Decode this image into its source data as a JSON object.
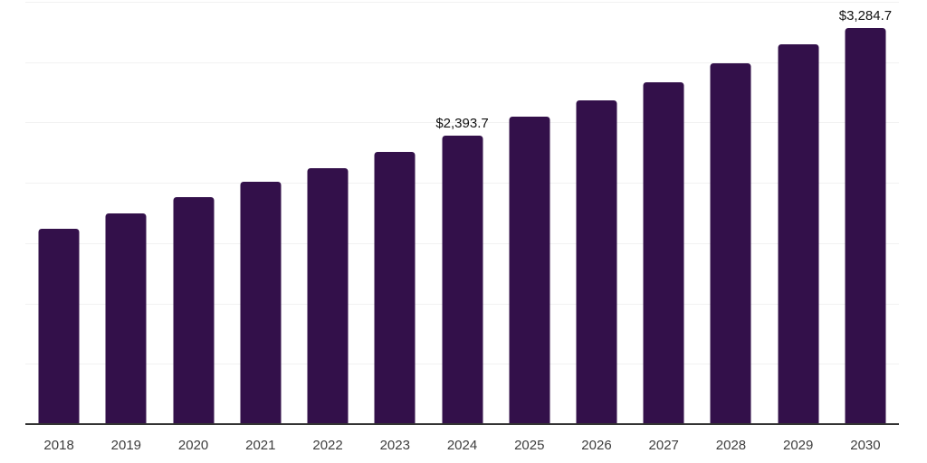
{
  "chart_data": {
    "type": "bar",
    "title": "",
    "xlabel": "",
    "ylabel": "",
    "categories": [
      "2018",
      "2019",
      "2020",
      "2021",
      "2022",
      "2023",
      "2024",
      "2025",
      "2026",
      "2027",
      "2028",
      "2029",
      "2030"
    ],
    "values": [
      1620,
      1750,
      1880,
      2005,
      2120,
      2255,
      2393.7,
      2545,
      2680,
      2835,
      2990,
      3150,
      3284.7
    ],
    "data_labels": [
      "",
      "",
      "",
      "",
      "",
      "",
      "$2,393.7",
      "",
      "",
      "",
      "",
      "",
      "$3,284.7"
    ],
    "value_prefix": "$",
    "ylim": [
      0,
      3500
    ],
    "gridline_step": 500,
    "grid": "horizontal-only",
    "legend": "none",
    "y_axis_ticks_visible": false,
    "colors": {
      "bar": "#33104A",
      "gridline": "#F2F2F2",
      "axis_line": "#333333",
      "tick_label": "#3D3D3D",
      "data_label": "#111111",
      "background": "#FFFFFF"
    }
  }
}
